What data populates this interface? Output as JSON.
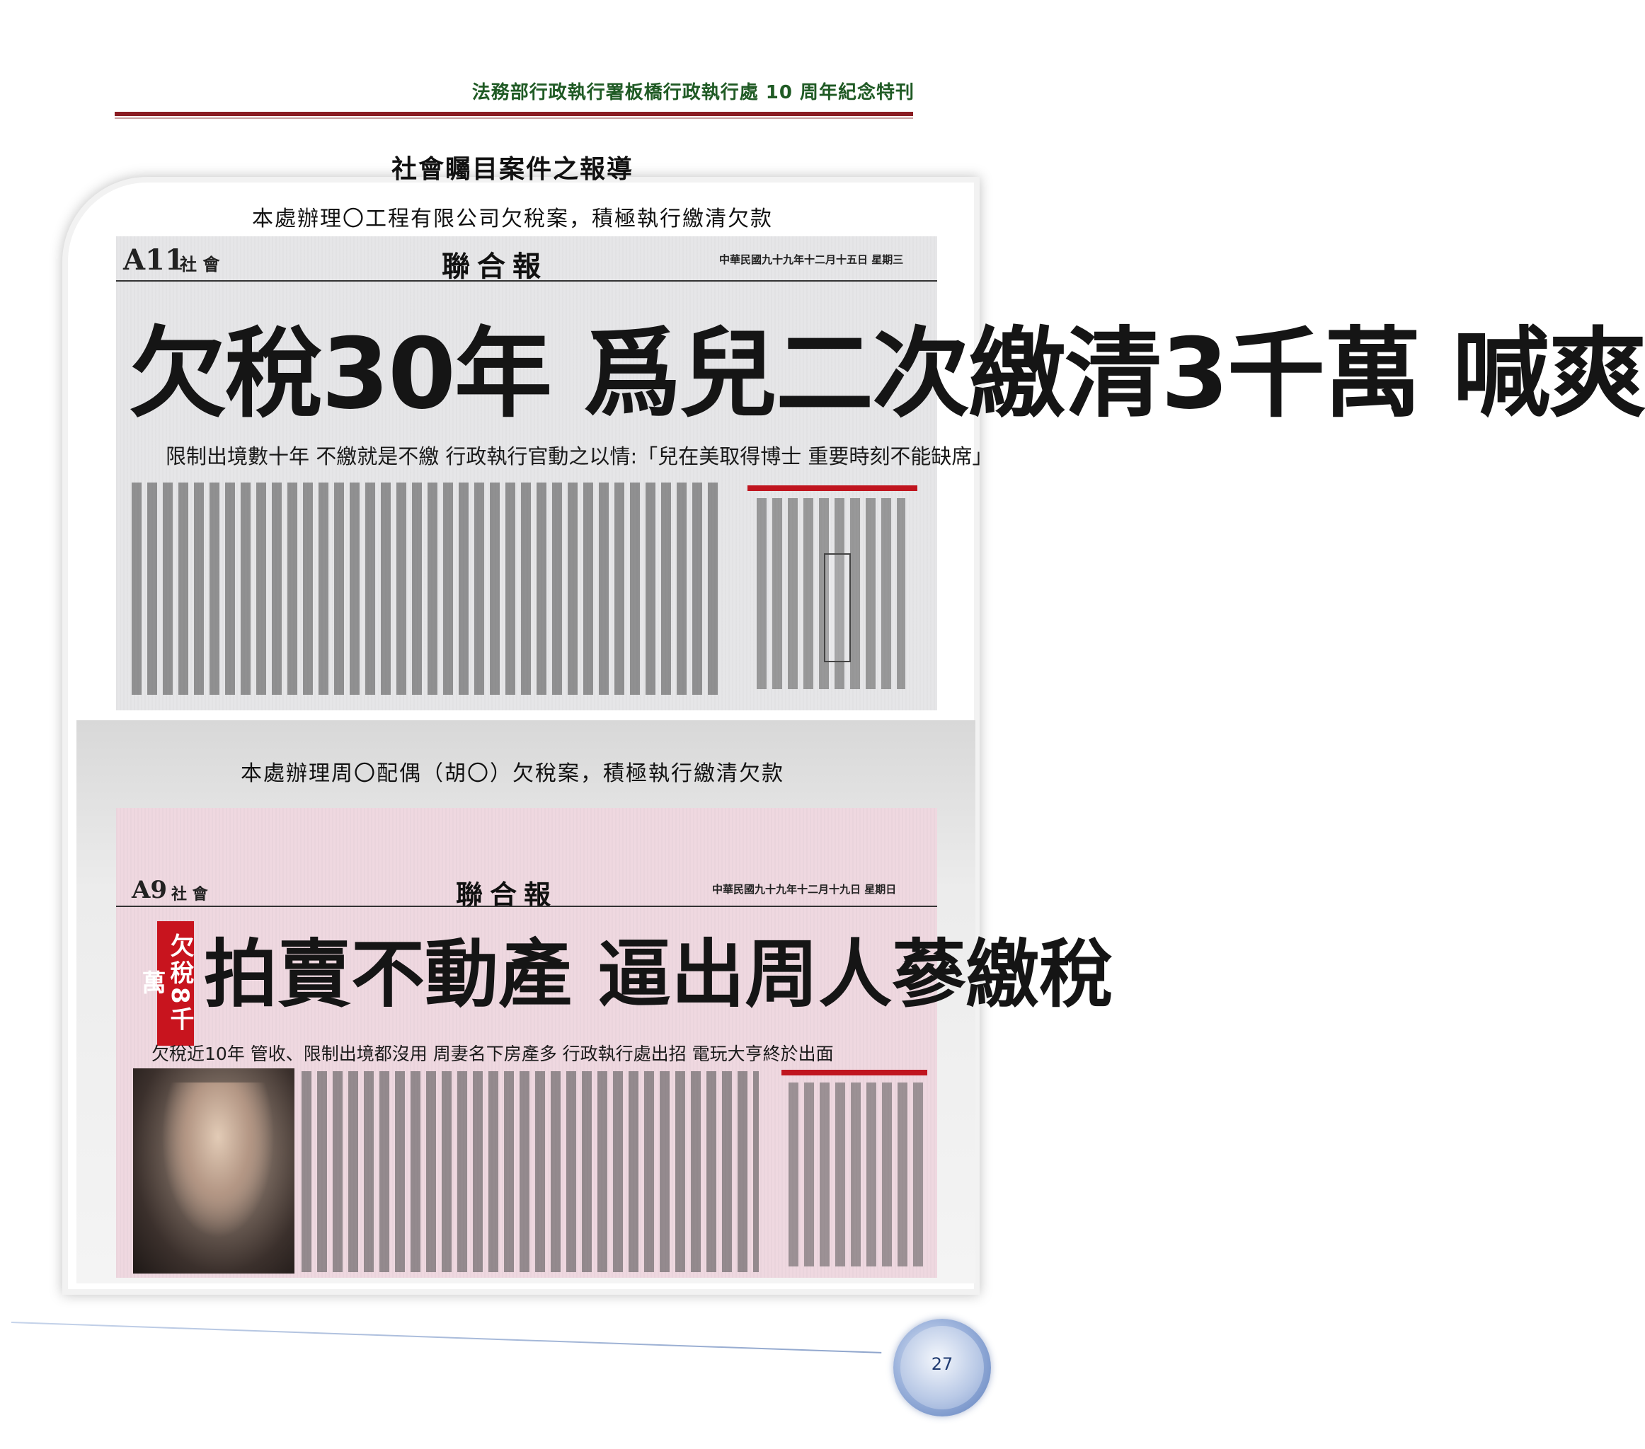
{
  "header": {
    "title": "法務部行政執行署板橋行政執行處 10 周年紀念特刊"
  },
  "section_title": "社會矚目案件之報導",
  "clippings": [
    {
      "caption": "本處辦理〇工程有限公司欠稅案，積極執行繳清欠款",
      "page_label": "A11",
      "section": "社 會",
      "newspaper": "聯合報",
      "date": "中華民國九十九年十二月十五日 星期三",
      "headline": "欠稅30年 爲兒二次繳清3千萬 喊爽",
      "subheadline": "限制出境數十年 不繳就是不繳 行政執行官動之以情:「兒在美取得博士 重要時刻不能缺席」"
    },
    {
      "caption": "本處辦理周〇配偶（胡〇）欠稅案，積極執行繳清欠款",
      "page_label": "A9",
      "section": "社 會",
      "newspaper": "聯合報",
      "date": "中華民國九十九年十二月十九日 星期日",
      "badge": "欠稅8千萬",
      "headline": "拍賣不動產 逼出周人蔘繳稅",
      "subheadline": "欠稅近10年 管收、限制出境都沒用 周妻名下房產多 行政執行處出招 電玩大亨終於出面"
    }
  ],
  "page_number": "27"
}
